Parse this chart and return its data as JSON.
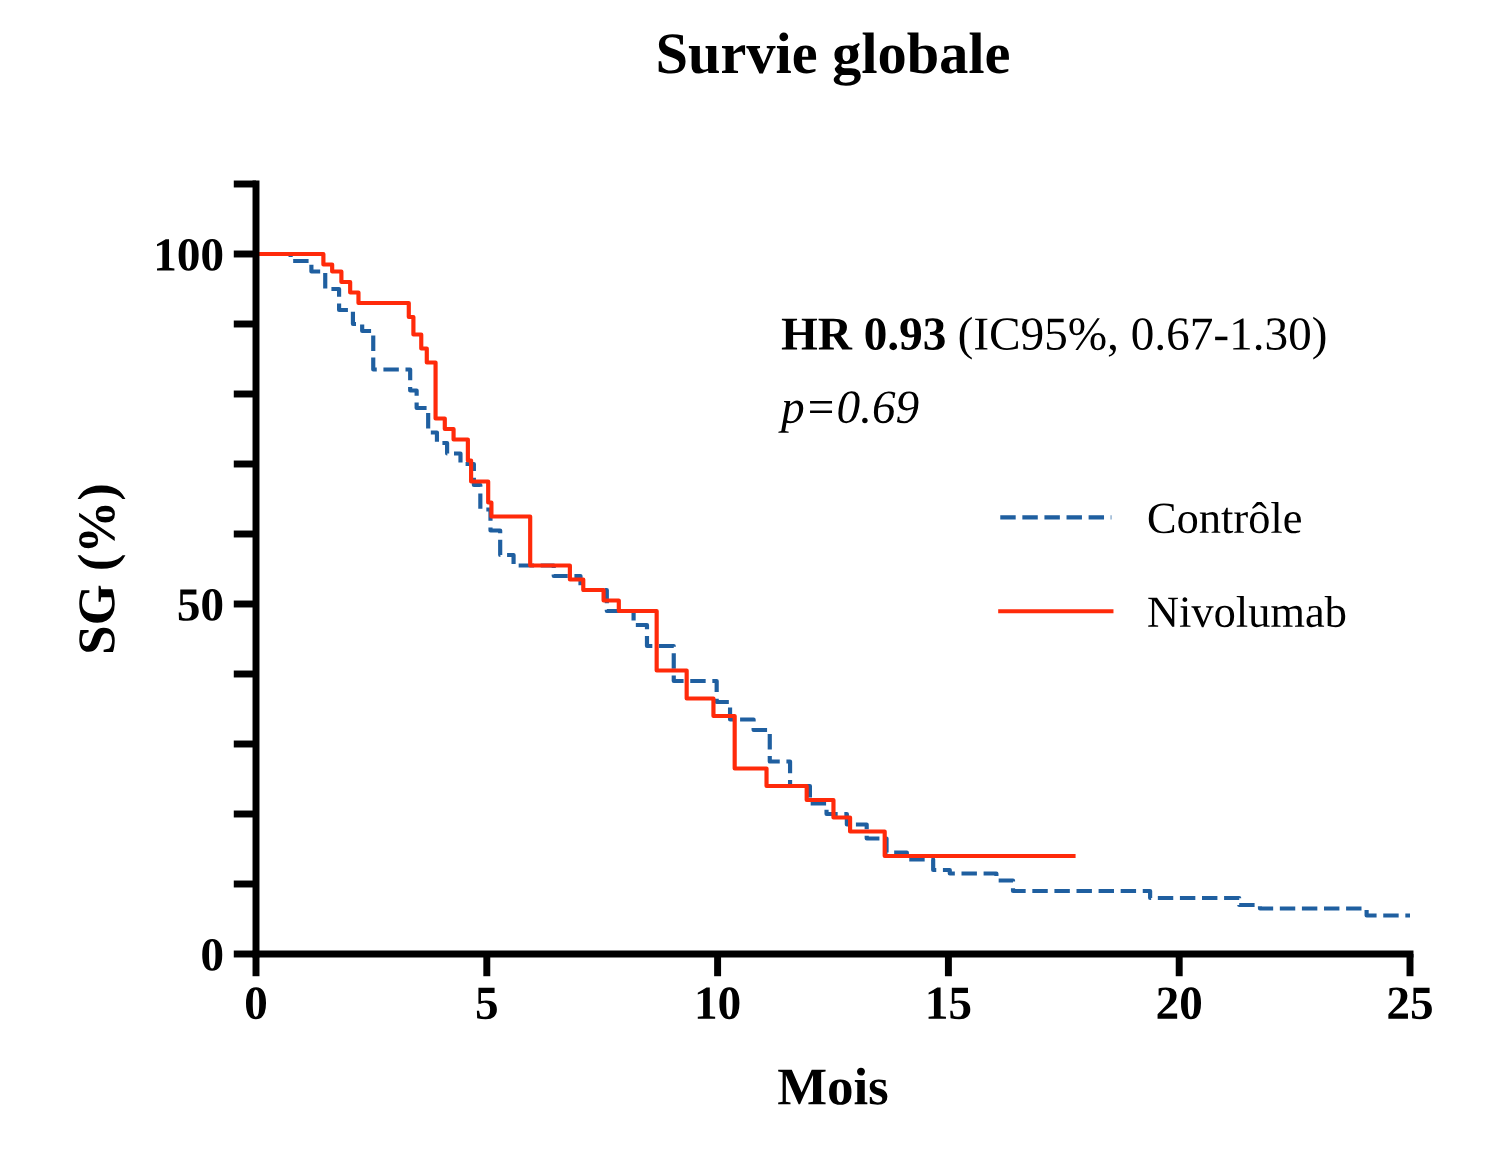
{
  "chart_data": {
    "type": "step",
    "title": "Survie globale",
    "xlabel": "Mois",
    "ylabel": "SG (%)",
    "annotations": [
      "HR 0.93",
      "(IC95%, 0.67-1.30)",
      "p=0.69"
    ],
    "xlim": [
      0,
      25
    ],
    "xticks": [
      0,
      5,
      10,
      15,
      20,
      25
    ],
    "ylim": [
      0,
      110
    ],
    "yticks": [
      0,
      {
        "value": 10,
        "label": null
      },
      {
        "value": 20,
        "label": null
      },
      {
        "value": 30,
        "label": null
      },
      {
        "value": 40,
        "label": null
      },
      50,
      {
        "value": 60,
        "label": null
      },
      {
        "value": 70,
        "label": null
      },
      {
        "value": 80,
        "label": null
      },
      {
        "value": 90,
        "label": null
      },
      100,
      {
        "value": 110,
        "label": null
      }
    ],
    "grid": false,
    "legend": "right",
    "marker": "none",
    "series": [
      {
        "name": "Contrôle",
        "color": "#1f5fa0",
        "line_style": "dashed",
        "x": [
          0,
          0.75,
          1.2,
          1.5,
          1.8,
          2.1,
          2.3,
          2.54,
          3.34,
          3.48,
          3.73,
          3.92,
          4.14,
          4.43,
          4.72,
          4.86,
          5.08,
          5.29,
          5.58,
          6.45,
          7.03,
          7.6,
          8.18,
          8.47,
          9.05,
          9.98,
          10.27,
          10.78,
          11.13,
          11.57,
          12.0,
          12.36,
          12.8,
          13.23,
          13.66,
          14.1,
          14.67,
          15.03,
          16.04,
          16.4,
          19.37,
          21.3,
          21.75,
          24.06,
          25
        ],
        "values": [
          100,
          99,
          97.5,
          95,
          92,
          90,
          89,
          83.5,
          80.5,
          78,
          74.5,
          73,
          71.5,
          70,
          67,
          63.5,
          60.5,
          57,
          55.5,
          54,
          52,
          49,
          47,
          44,
          39,
          36,
          33.5,
          32,
          27.5,
          24,
          21.5,
          20,
          18.5,
          16.5,
          14.5,
          13.5,
          12,
          11.5,
          10.5,
          9,
          8,
          7,
          6.5,
          5.5,
          5.5
        ]
      },
      {
        "name": "Nivolumab",
        "color": "#ff2a0a",
        "line_style": "solid",
        "x": [
          0,
          1.46,
          1.65,
          1.85,
          2.04,
          2.22,
          3.31,
          3.41,
          3.58,
          3.7,
          3.89,
          4.09,
          4.28,
          4.59,
          4.66,
          5.03,
          5.1,
          5.94,
          6.8,
          7.09,
          7.53,
          7.86,
          8.68,
          9.33,
          9.91,
          10.37,
          11.06,
          11.93,
          12.51,
          12.87,
          13.62,
          17.71
        ],
        "values": [
          100,
          98.5,
          97.5,
          96,
          94.5,
          93,
          91,
          88.5,
          86.5,
          84.5,
          76.5,
          75,
          73.5,
          70.5,
          67.5,
          64.5,
          62.5,
          55.5,
          53.5,
          52,
          50.5,
          49,
          40.5,
          36.5,
          34,
          26.5,
          24,
          22,
          19.5,
          17.5,
          14,
          14
        ]
      }
    ]
  }
}
